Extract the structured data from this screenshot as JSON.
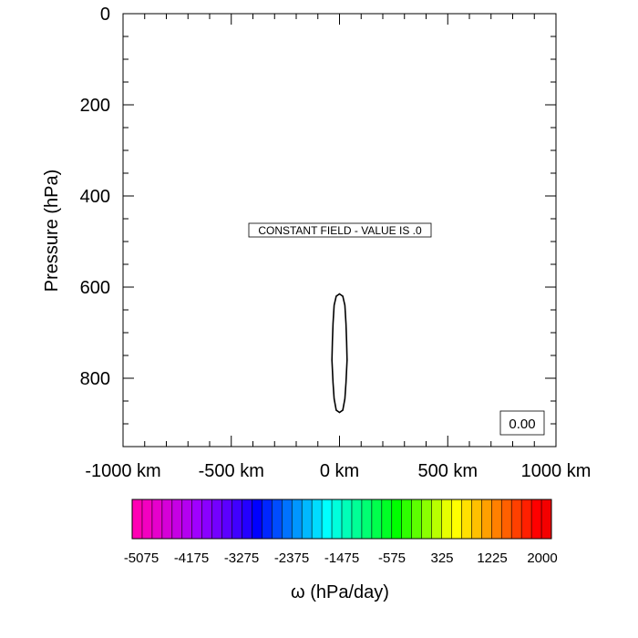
{
  "chart_data": {
    "type": "contour",
    "xlabel": "",
    "ylabel": "Pressure (hPa)",
    "xlim": [
      -1000,
      1000
    ],
    "ylim": [
      950,
      0
    ],
    "x_tick_labels": [
      "-1000 km",
      "-500 km",
      "0 km",
      "500 km",
      "1000 km"
    ],
    "x_tick_values": [
      -1000,
      -500,
      0,
      500,
      1000
    ],
    "x_minor_step": 100,
    "y_tick_labels": [
      "0",
      "200",
      "400",
      "600",
      "800"
    ],
    "y_tick_values": [
      0,
      200,
      400,
      600,
      800
    ],
    "y_minor_step": 50,
    "annotation": "CONSTANT FIELD - VALUE IS .0",
    "info_label": "0.00",
    "contour": {
      "x": [
        0,
        15,
        25,
        30,
        33,
        35,
        30,
        25,
        15,
        0,
        -15,
        -25,
        -30,
        -35,
        -33,
        -30,
        -25,
        -15,
        0
      ],
      "y": [
        615,
        620,
        640,
        680,
        720,
        760,
        810,
        845,
        870,
        875,
        870,
        845,
        810,
        760,
        720,
        680,
        640,
        620,
        615
      ]
    },
    "colorbar": {
      "label": "ω (hPa/day)",
      "tick_labels": [
        "-5075",
        "-4175",
        "-3275",
        "-2375",
        "-1475",
        "-575",
        "325",
        "1225",
        "2000"
      ],
      "colors": [
        "#ff00b4",
        "#f300c0",
        "#e600cc",
        "#d600d8",
        "#c600e4",
        "#b400f0",
        "#a000ff",
        "#8a00ff",
        "#7400ff",
        "#5c00ff",
        "#4000ff",
        "#2400ff",
        "#0000ff",
        "#0026ff",
        "#004cff",
        "#0072ff",
        "#0096ff",
        "#00b8ff",
        "#00dcff",
        "#00ffff",
        "#00ffdc",
        "#00ffb8",
        "#00ff96",
        "#00ff72",
        "#00ff4c",
        "#00ff26",
        "#00ff00",
        "#2eff00",
        "#5cff00",
        "#8aff00",
        "#b8ff00",
        "#e6ff00",
        "#ffff00",
        "#ffe000",
        "#ffc000",
        "#ffa000",
        "#ff8000",
        "#ff6000",
        "#ff4000",
        "#ff2000",
        "#ff0000",
        "#f40000"
      ]
    }
  }
}
